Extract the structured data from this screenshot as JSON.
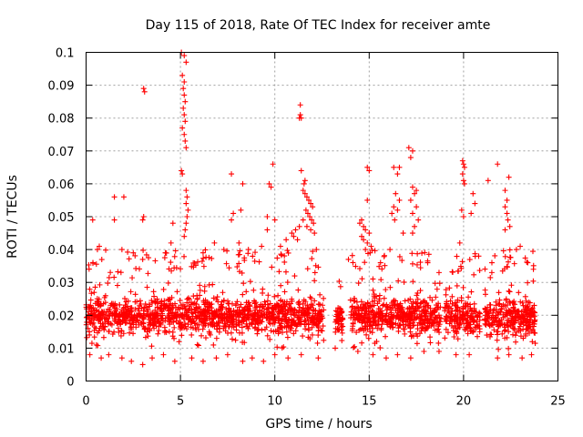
{
  "chart_data": {
    "type": "scatter",
    "title": "Day 115 of 2018, Rate Of TEC Index for receiver amte",
    "xlabel": "GPS time / hours",
    "ylabel": "ROTI / TECUs",
    "xlim": [
      0,
      25
    ],
    "ylim": [
      0,
      0.1
    ],
    "xticks": [
      0,
      5,
      10,
      15,
      20,
      25
    ],
    "xtick_labels": [
      "0",
      "5",
      "10",
      "15",
      "20",
      "25"
    ],
    "yticks": [
      0,
      0.01,
      0.02,
      0.03,
      0.04,
      0.05,
      0.06,
      0.07,
      0.08,
      0.09,
      0.1
    ],
    "ytick_labels": [
      "0",
      "0.01",
      "0.02",
      "0.03",
      "0.04",
      "0.05",
      "0.06",
      "0.07",
      "0.08",
      "0.09",
      "0.1"
    ],
    "grid": true,
    "marker": "+",
    "color": "#ff0000",
    "data_gaps_hours": [
      [
        12.6,
        13.2
      ],
      [
        13.6,
        14.0
      ],
      [
        18.8,
        19.0
      ],
      [
        20.9,
        21.1
      ]
    ],
    "series": [
      {
        "values_approx": "dense band 0.008-0.035, outliers to 0.1",
        "points": [
          [
            3.05,
            0.089
          ],
          [
            3.1,
            0.088
          ],
          [
            3.05,
            0.05
          ],
          [
            3.0,
            0.049
          ],
          [
            5.05,
            0.1
          ],
          [
            5.2,
            0.099
          ],
          [
            5.3,
            0.097
          ],
          [
            5.1,
            0.093
          ],
          [
            5.2,
            0.091
          ],
          [
            5.15,
            0.089
          ],
          [
            5.2,
            0.087
          ],
          [
            5.25,
            0.085
          ],
          [
            5.15,
            0.083
          ],
          [
            5.2,
            0.081
          ],
          [
            5.25,
            0.079
          ],
          [
            5.1,
            0.077
          ],
          [
            5.2,
            0.075
          ],
          [
            5.25,
            0.073
          ],
          [
            5.3,
            0.071
          ],
          [
            5.05,
            0.064
          ],
          [
            5.1,
            0.063
          ],
          [
            5.3,
            0.058
          ],
          [
            5.35,
            0.056
          ],
          [
            5.3,
            0.054
          ],
          [
            5.4,
            0.052
          ],
          [
            5.35,
            0.05
          ],
          [
            5.3,
            0.048
          ],
          [
            5.25,
            0.046
          ],
          [
            5.2,
            0.044
          ],
          [
            4.6,
            0.048
          ],
          [
            1.5,
            0.056
          ],
          [
            2.0,
            0.056
          ],
          [
            1.5,
            0.049
          ],
          [
            0.35,
            0.049
          ],
          [
            7.7,
            0.063
          ],
          [
            8.3,
            0.06
          ],
          [
            7.8,
            0.051
          ],
          [
            7.7,
            0.049
          ],
          [
            8.2,
            0.052
          ],
          [
            8.1,
            0.042
          ],
          [
            9.9,
            0.066
          ],
          [
            9.7,
            0.06
          ],
          [
            9.8,
            0.059
          ],
          [
            9.6,
            0.05
          ],
          [
            10.0,
            0.049
          ],
          [
            11.35,
            0.084
          ],
          [
            11.35,
            0.081
          ],
          [
            11.3,
            0.08
          ],
          [
            11.4,
            0.08
          ],
          [
            11.4,
            0.064
          ],
          [
            11.6,
            0.061
          ],
          [
            11.55,
            0.06
          ],
          [
            11.5,
            0.058
          ],
          [
            11.6,
            0.057
          ],
          [
            11.7,
            0.056
          ],
          [
            11.8,
            0.055
          ],
          [
            11.9,
            0.054
          ],
          [
            12.0,
            0.053
          ],
          [
            11.65,
            0.052
          ],
          [
            11.75,
            0.051
          ],
          [
            11.85,
            0.05
          ],
          [
            11.95,
            0.049
          ],
          [
            12.05,
            0.048
          ],
          [
            11.7,
            0.047
          ],
          [
            11.9,
            0.046
          ],
          [
            12.1,
            0.045
          ],
          [
            11.5,
            0.049
          ],
          [
            11.3,
            0.047
          ],
          [
            11.1,
            0.046
          ],
          [
            10.9,
            0.045
          ],
          [
            11.0,
            0.044
          ],
          [
            11.2,
            0.043
          ],
          [
            14.9,
            0.065
          ],
          [
            15.0,
            0.064
          ],
          [
            14.9,
            0.055
          ],
          [
            14.6,
            0.049
          ],
          [
            14.5,
            0.048
          ],
          [
            14.7,
            0.047
          ],
          [
            14.8,
            0.046
          ],
          [
            15.0,
            0.045
          ],
          [
            14.6,
            0.044
          ],
          [
            14.7,
            0.043
          ],
          [
            14.9,
            0.042
          ],
          [
            15.1,
            0.041
          ],
          [
            14.8,
            0.04
          ],
          [
            15.05,
            0.039
          ],
          [
            16.3,
            0.065
          ],
          [
            16.6,
            0.065
          ],
          [
            16.5,
            0.063
          ],
          [
            17.1,
            0.071
          ],
          [
            17.3,
            0.07
          ],
          [
            17.2,
            0.068
          ],
          [
            16.4,
            0.057
          ],
          [
            16.3,
            0.053
          ],
          [
            16.5,
            0.052
          ],
          [
            16.2,
            0.051
          ],
          [
            16.35,
            0.049
          ],
          [
            16.6,
            0.055
          ],
          [
            17.3,
            0.059
          ],
          [
            17.5,
            0.058
          ],
          [
            17.4,
            0.057
          ],
          [
            17.2,
            0.055
          ],
          [
            17.5,
            0.053
          ],
          [
            17.3,
            0.051
          ],
          [
            17.6,
            0.049
          ],
          [
            17.4,
            0.047
          ],
          [
            17.3,
            0.045
          ],
          [
            19.95,
            0.067
          ],
          [
            20.0,
            0.066
          ],
          [
            20.05,
            0.065
          ],
          [
            19.95,
            0.063
          ],
          [
            20.0,
            0.061
          ],
          [
            20.05,
            0.06
          ],
          [
            19.9,
            0.052
          ],
          [
            20.0,
            0.05
          ],
          [
            20.5,
            0.057
          ],
          [
            20.6,
            0.054
          ],
          [
            20.4,
            0.051
          ],
          [
            21.8,
            0.066
          ],
          [
            21.3,
            0.061
          ],
          [
            22.4,
            0.062
          ],
          [
            22.2,
            0.058
          ],
          [
            22.3,
            0.055
          ],
          [
            22.2,
            0.053
          ],
          [
            22.3,
            0.051
          ],
          [
            22.35,
            0.049
          ],
          [
            22.45,
            0.047
          ],
          [
            22.2,
            0.046
          ],
          [
            0.6,
            0.04
          ],
          [
            0.7,
            0.041
          ],
          [
            1.9,
            0.04
          ],
          [
            2.5,
            0.039
          ],
          [
            3.0,
            0.037
          ],
          [
            4.2,
            0.039
          ],
          [
            4.5,
            0.042
          ],
          [
            6.2,
            0.039
          ],
          [
            6.8,
            0.042
          ],
          [
            7.3,
            0.04
          ],
          [
            8.6,
            0.04
          ],
          [
            9.3,
            0.041
          ],
          [
            9.6,
            0.046
          ],
          [
            10.3,
            0.041
          ],
          [
            10.6,
            0.043
          ],
          [
            12.2,
            0.04
          ],
          [
            13.9,
            0.037
          ],
          [
            15.6,
            0.036
          ],
          [
            16.1,
            0.04
          ],
          [
            16.8,
            0.045
          ],
          [
            18.1,
            0.036
          ],
          [
            18.7,
            0.033
          ],
          [
            19.8,
            0.042
          ],
          [
            20.8,
            0.038
          ],
          [
            21.5,
            0.036
          ],
          [
            22.8,
            0.04
          ],
          [
            23.0,
            0.041
          ],
          [
            23.4,
            0.036
          ],
          [
            23.7,
            0.034
          ],
          [
            0.2,
            0.008
          ],
          [
            0.8,
            0.007
          ],
          [
            1.2,
            0.008
          ],
          [
            1.9,
            0.007
          ],
          [
            2.4,
            0.006
          ],
          [
            3.0,
            0.005
          ],
          [
            3.5,
            0.007
          ],
          [
            4.1,
            0.008
          ],
          [
            4.7,
            0.006
          ],
          [
            5.6,
            0.007
          ],
          [
            6.2,
            0.006
          ],
          [
            6.9,
            0.007
          ],
          [
            7.5,
            0.008
          ],
          [
            8.3,
            0.006
          ],
          [
            8.8,
            0.007
          ],
          [
            9.4,
            0.006
          ],
          [
            10.0,
            0.008
          ],
          [
            10.7,
            0.007
          ],
          [
            11.4,
            0.008
          ],
          [
            12.3,
            0.007
          ],
          [
            13.2,
            0.01
          ],
          [
            14.4,
            0.009
          ],
          [
            15.2,
            0.008
          ],
          [
            15.9,
            0.007
          ],
          [
            16.5,
            0.008
          ],
          [
            17.2,
            0.007
          ],
          [
            17.9,
            0.009
          ],
          [
            18.7,
            0.009
          ],
          [
            19.6,
            0.008
          ],
          [
            20.3,
            0.008
          ],
          [
            21.8,
            0.007
          ],
          [
            22.4,
            0.008
          ],
          [
            23.1,
            0.007
          ],
          [
            23.6,
            0.008
          ]
        ],
        "bands": [
          {
            "x_from": 0.0,
            "x_to": 12.6,
            "y_low": 0.01,
            "y_high": 0.034,
            "n": 1300
          },
          {
            "x_from": 13.2,
            "x_to": 13.6,
            "y_low": 0.012,
            "y_high": 0.03,
            "n": 50
          },
          {
            "x_from": 14.0,
            "x_to": 18.8,
            "y_low": 0.01,
            "y_high": 0.034,
            "n": 520
          },
          {
            "x_from": 19.0,
            "x_to": 20.9,
            "y_low": 0.01,
            "y_high": 0.033,
            "n": 190
          },
          {
            "x_from": 21.1,
            "x_to": 23.8,
            "y_low": 0.009,
            "y_high": 0.034,
            "n": 300
          }
        ]
      }
    ]
  }
}
